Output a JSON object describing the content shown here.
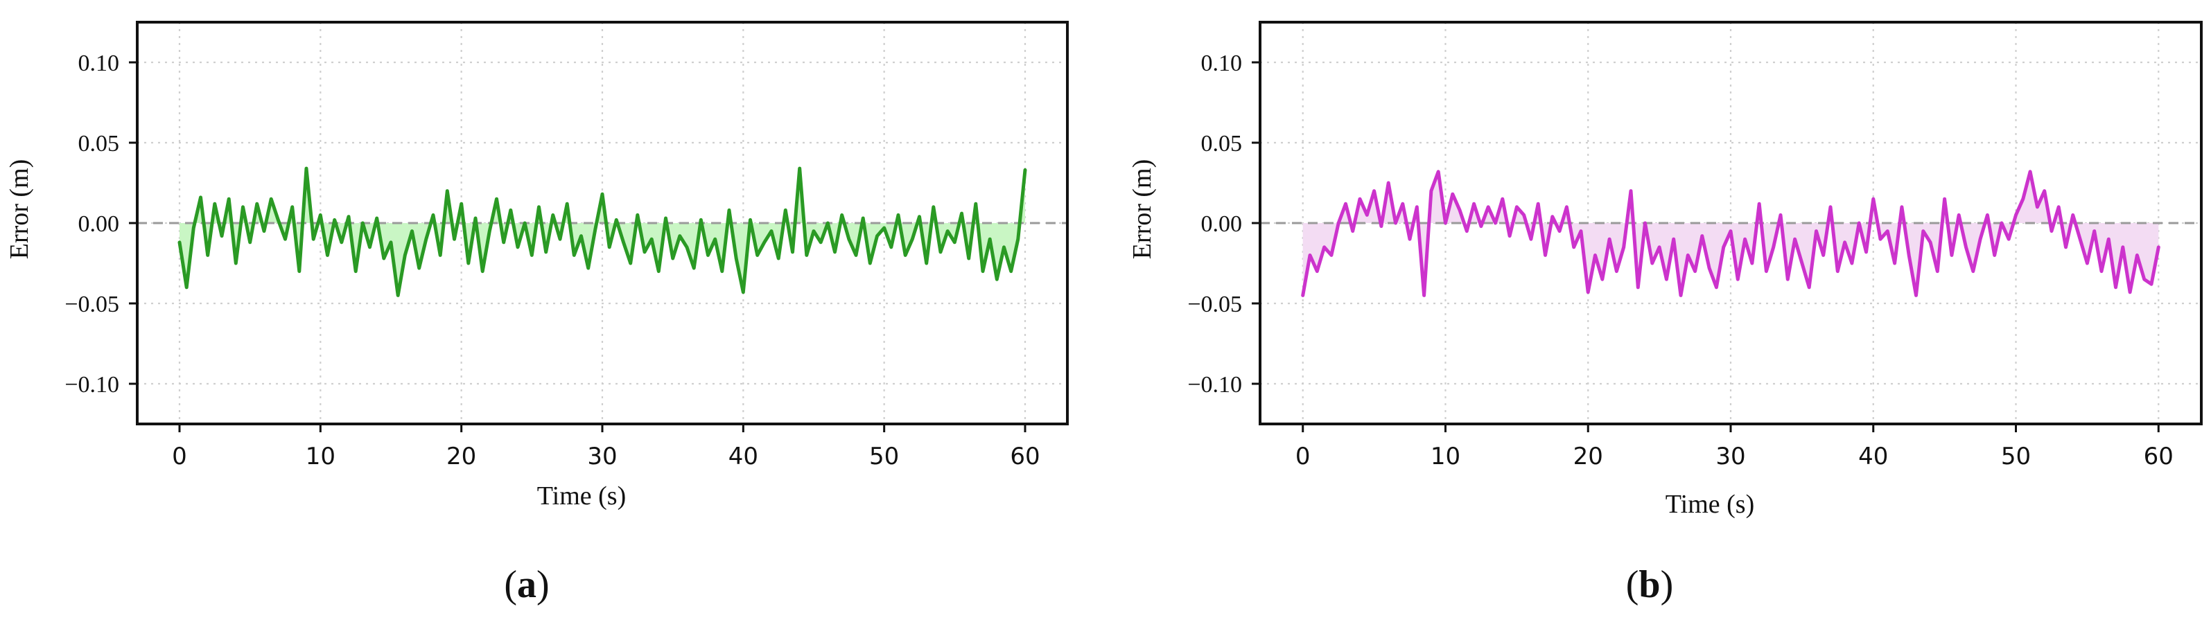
{
  "chart_data": [
    {
      "id": "a",
      "type": "line",
      "panel_label": "a",
      "xlabel": "Time (s)",
      "ylabel": "Error (m)",
      "xlim": [
        -3,
        63
      ],
      "ylim": [
        -0.125,
        0.125
      ],
      "xticks": [
        0,
        10,
        20,
        30,
        40,
        50,
        60
      ],
      "xtick_labels": [
        "0",
        "10",
        "20",
        "30",
        "40",
        "50",
        "60"
      ],
      "yticks": [
        0.1,
        0.05,
        0.0,
        -0.05,
        -0.1
      ],
      "ytick_labels": [
        "0.10",
        "0.05",
        "0.00",
        "−0.05",
        "−0.10"
      ],
      "grid": true,
      "zero_reference_line": true,
      "fill_to_zero": true,
      "colors": {
        "line": "#2a9a24",
        "fill": "#c9f6c4"
      },
      "series": [
        {
          "x": [
            0,
            0.5,
            1,
            1.5,
            2,
            2.5,
            3,
            3.5,
            4,
            4.5,
            5,
            5.5,
            6,
            6.5,
            7,
            7.5,
            8,
            8.5,
            9,
            9.5,
            10,
            10.5,
            11,
            11.5,
            12,
            12.5,
            13,
            13.5,
            14,
            14.5,
            15,
            15.5,
            16,
            16.5,
            17,
            17.5,
            18,
            18.5,
            19,
            19.5,
            20,
            20.5,
            21,
            21.5,
            22,
            22.5,
            23,
            23.5,
            24,
            24.5,
            25,
            25.5,
            26,
            26.5,
            27,
            27.5,
            28,
            28.5,
            29,
            29.5,
            30,
            30.5,
            31,
            31.5,
            32,
            32.5,
            33,
            33.5,
            34,
            34.5,
            35,
            35.5,
            36,
            36.5,
            37,
            37.5,
            38,
            38.5,
            39,
            39.5,
            40,
            40.5,
            41,
            41.5,
            42,
            42.5,
            43,
            43.5,
            44,
            44.5,
            45,
            45.5,
            46,
            46.5,
            47,
            47.5,
            48,
            48.5,
            49,
            49.5,
            50,
            50.5,
            51,
            51.5,
            52,
            52.5,
            53,
            53.5,
            54,
            54.5,
            55,
            55.5,
            56,
            56.5,
            57,
            57.5,
            58,
            58.5,
            59,
            59.5,
            60
          ],
          "y": [
            -0.012,
            -0.04,
            -0.003,
            0.016,
            -0.02,
            0.012,
            -0.008,
            0.015,
            -0.025,
            0.01,
            -0.012,
            0.012,
            -0.005,
            0.015,
            0.002,
            -0.01,
            0.01,
            -0.03,
            0.034,
            -0.01,
            0.005,
            -0.02,
            0.002,
            -0.012,
            0.004,
            -0.03,
            0.0,
            -0.015,
            0.003,
            -0.022,
            -0.012,
            -0.045,
            -0.02,
            -0.005,
            -0.028,
            -0.01,
            0.005,
            -0.02,
            0.02,
            -0.01,
            0.012,
            -0.025,
            0.003,
            -0.03,
            -0.005,
            0.015,
            -0.012,
            0.008,
            -0.015,
            0.0,
            -0.02,
            0.01,
            -0.018,
            0.005,
            -0.01,
            0.012,
            -0.02,
            -0.008,
            -0.028,
            -0.004,
            0.018,
            -0.015,
            0.002,
            -0.012,
            -0.025,
            0.005,
            -0.018,
            -0.01,
            -0.03,
            0.003,
            -0.022,
            -0.008,
            -0.015,
            -0.028,
            0.002,
            -0.02,
            -0.01,
            -0.03,
            0.008,
            -0.022,
            -0.043,
            0.002,
            -0.02,
            -0.012,
            -0.005,
            -0.022,
            0.008,
            -0.018,
            0.034,
            -0.02,
            -0.005,
            -0.012,
            0.0,
            -0.018,
            0.005,
            -0.01,
            -0.02,
            0.003,
            -0.025,
            -0.008,
            -0.003,
            -0.015,
            0.005,
            -0.02,
            -0.01,
            0.004,
            -0.025,
            0.01,
            -0.018,
            -0.005,
            -0.012,
            0.006,
            -0.022,
            0.012,
            -0.03,
            -0.01,
            -0.035,
            -0.015,
            -0.03,
            -0.01,
            0.033
          ]
        }
      ]
    },
    {
      "id": "b",
      "type": "line",
      "panel_label": "b",
      "xlabel": "Time (s)",
      "ylabel": "Error (m)",
      "xlim": [
        -3,
        63
      ],
      "ylim": [
        -0.125,
        0.125
      ],
      "xticks": [
        0,
        10,
        20,
        30,
        40,
        50,
        60
      ],
      "xtick_labels": [
        "0",
        "10",
        "20",
        "30",
        "40",
        "50",
        "60"
      ],
      "yticks": [
        0.1,
        0.05,
        0.0,
        -0.05,
        -0.1
      ],
      "ytick_labels": [
        "0.10",
        "0.05",
        "0.00",
        "−0.05",
        "−0.10"
      ],
      "grid": true,
      "zero_reference_line": true,
      "fill_to_zero": true,
      "colors": {
        "line": "#cc33cc",
        "fill": "#f3dcf3"
      },
      "series": [
        {
          "x": [
            0,
            0.5,
            1,
            1.5,
            2,
            2.5,
            3,
            3.5,
            4,
            4.5,
            5,
            5.5,
            6,
            6.5,
            7,
            7.5,
            8,
            8.5,
            9,
            9.5,
            10,
            10.5,
            11,
            11.5,
            12,
            12.5,
            13,
            13.5,
            14,
            14.5,
            15,
            15.5,
            16,
            16.5,
            17,
            17.5,
            18,
            18.5,
            19,
            19.5,
            20,
            20.5,
            21,
            21.5,
            22,
            22.5,
            23,
            23.5,
            24,
            24.5,
            25,
            25.5,
            26,
            26.5,
            27,
            27.5,
            28,
            28.5,
            29,
            29.5,
            30,
            30.5,
            31,
            31.5,
            32,
            32.5,
            33,
            33.5,
            34,
            34.5,
            35,
            35.5,
            36,
            36.5,
            37,
            37.5,
            38,
            38.5,
            39,
            39.5,
            40,
            40.5,
            41,
            41.5,
            42,
            42.5,
            43,
            43.5,
            44,
            44.5,
            45,
            45.5,
            46,
            46.5,
            47,
            47.5,
            48,
            48.5,
            49,
            49.5,
            50,
            50.5,
            51,
            51.5,
            52,
            52.5,
            53,
            53.5,
            54,
            54.5,
            55,
            55.5,
            56,
            56.5,
            57,
            57.5,
            58,
            58.5,
            59,
            59.5,
            60
          ],
          "y": [
            -0.045,
            -0.02,
            -0.03,
            -0.015,
            -0.02,
            0.0,
            0.012,
            -0.005,
            0.015,
            0.005,
            0.02,
            -0.002,
            0.025,
            0.0,
            0.012,
            -0.01,
            0.01,
            -0.045,
            0.02,
            0.032,
            0.0,
            0.018,
            0.008,
            -0.005,
            0.012,
            -0.002,
            0.01,
            0.0,
            0.015,
            -0.008,
            0.01,
            0.005,
            -0.01,
            0.012,
            -0.02,
            0.004,
            -0.005,
            0.01,
            -0.015,
            -0.005,
            -0.043,
            -0.02,
            -0.035,
            -0.01,
            -0.03,
            -0.015,
            0.02,
            -0.04,
            0.0,
            -0.025,
            -0.015,
            -0.035,
            -0.01,
            -0.045,
            -0.02,
            -0.03,
            -0.008,
            -0.028,
            -0.04,
            -0.015,
            -0.005,
            -0.035,
            -0.01,
            -0.025,
            0.012,
            -0.03,
            -0.015,
            0.005,
            -0.035,
            -0.01,
            -0.025,
            -0.04,
            -0.005,
            -0.02,
            0.01,
            -0.03,
            -0.012,
            -0.025,
            0.0,
            -0.018,
            0.015,
            -0.01,
            -0.005,
            -0.025,
            0.01,
            -0.02,
            -0.045,
            -0.005,
            -0.012,
            -0.03,
            0.015,
            -0.02,
            0.005,
            -0.015,
            -0.03,
            -0.01,
            0.005,
            -0.02,
            0.0,
            -0.01,
            0.005,
            0.015,
            0.032,
            0.01,
            0.02,
            -0.005,
            0.01,
            -0.015,
            0.005,
            -0.01,
            -0.025,
            -0.005,
            -0.03,
            -0.01,
            -0.04,
            -0.015,
            -0.043,
            -0.02,
            -0.035,
            -0.038,
            -0.015
          ]
        }
      ]
    }
  ]
}
